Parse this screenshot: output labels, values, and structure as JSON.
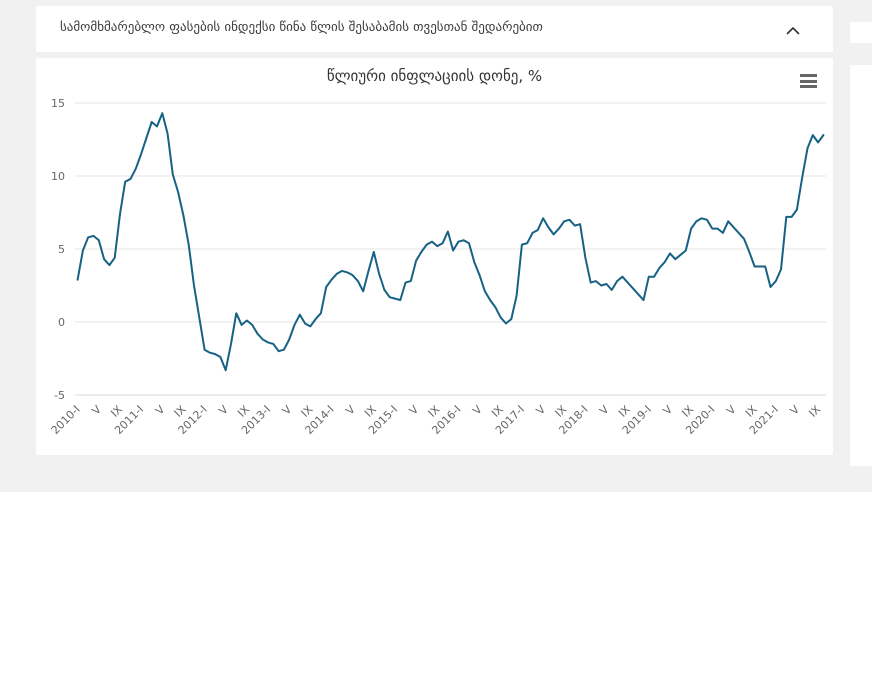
{
  "accordion": {
    "title": "სამომხმარებლო ფასების ინდექსი წინა წლის შესაბამის თვესთან შედარებით",
    "collapse_icon": "chevron-up"
  },
  "chart": {
    "title": "წლიური ინფლაციის დონე, %",
    "menu_icon": "hamburger-menu"
  },
  "chart_data": {
    "type": "line",
    "title": "წლიური ინფლაციის დონე, %",
    "xlabel": "",
    "ylabel": "",
    "ylim": [
      -5,
      15
    ],
    "y_ticks": [
      15,
      10,
      5,
      0,
      -5
    ],
    "grid": true,
    "legend": "none",
    "x_label_rotation": -45,
    "tick_every": 4,
    "x_tick_labels": [
      "2010-I",
      "V",
      "IX",
      "2011-I",
      "V",
      "IX",
      "2012-I",
      "V",
      "IX",
      "2013-I",
      "V",
      "IX",
      "2014-I",
      "V",
      "IX",
      "2015-I",
      "V",
      "IX",
      "2016-I",
      "V",
      "IX",
      "2017-I",
      "V",
      "IX",
      "2018-I",
      "V",
      "IX",
      "2019-I",
      "V",
      "IX",
      "2020-I",
      "V",
      "IX",
      "2021-I",
      "V",
      "IX"
    ],
    "x_unit": "month",
    "x_start": "2010-I",
    "line_color": "#176284",
    "series": [
      {
        "name": "წლიური ინფლაციის დონე, %",
        "values": [
          2.9,
          4.9,
          5.8,
          5.9,
          5.6,
          4.3,
          3.9,
          4.4,
          7.4,
          9.6,
          9.8,
          10.5,
          11.5,
          12.6,
          13.7,
          13.4,
          14.3,
          12.9,
          10.1,
          8.9,
          7.3,
          5.3,
          2.5,
          0.3,
          -1.9,
          -2.1,
          -2.2,
          -2.4,
          -3.3,
          -1.5,
          0.6,
          -0.2,
          0.1,
          -0.2,
          -0.8,
          -1.2,
          -1.4,
          -1.5,
          -2.0,
          -1.9,
          -1.2,
          -0.2,
          0.5,
          -0.1,
          -0.3,
          0.2,
          0.6,
          2.4,
          2.9,
          3.3,
          3.5,
          3.4,
          3.2,
          2.8,
          2.1,
          3.5,
          4.8,
          3.3,
          2.2,
          1.7,
          1.6,
          1.5,
          2.7,
          2.8,
          4.2,
          4.8,
          5.3,
          5.5,
          5.2,
          5.4,
          6.2,
          4.9,
          5.5,
          5.6,
          5.4,
          4.1,
          3.2,
          2.1,
          1.5,
          1.0,
          0.3,
          -0.1,
          0.2,
          1.8,
          5.3,
          5.4,
          6.1,
          6.3,
          7.1,
          6.5,
          6.0,
          6.4,
          6.9,
          7.0,
          6.6,
          6.7,
          4.4,
          2.7,
          2.8,
          2.5,
          2.6,
          2.2,
          2.8,
          3.1,
          2.7,
          2.3,
          1.9,
          1.5,
          3.1,
          3.1,
          3.7,
          4.1,
          4.7,
          4.3,
          4.6,
          4.9,
          6.4,
          6.9,
          7.1,
          7.0,
          6.4,
          6.4,
          6.1,
          6.9,
          6.5,
          6.1,
          5.7,
          4.8,
          3.8,
          3.8,
          3.8,
          2.4,
          2.8,
          3.6,
          7.2,
          7.2,
          7.7,
          9.9,
          11.9,
          12.8,
          12.3,
          12.8
        ]
      }
    ]
  },
  "colors": {
    "page_band": "#f1f1f2",
    "panel": "#ffffff",
    "grid_line": "#e6e6e6",
    "axis_label": "#666666",
    "title_text": "#333333",
    "series_line": "#176284"
  }
}
